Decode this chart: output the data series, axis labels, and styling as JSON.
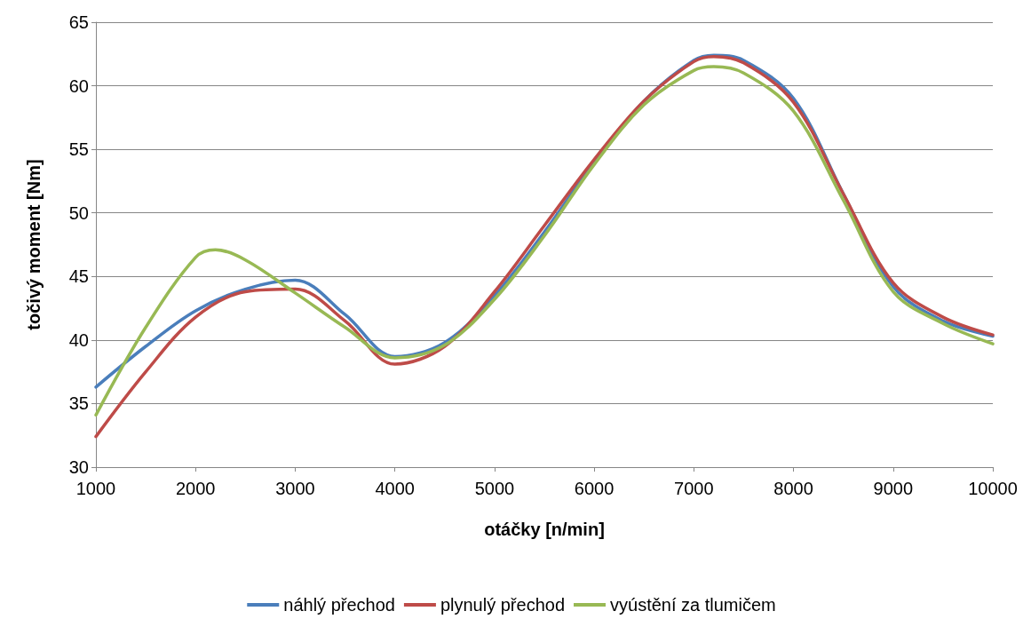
{
  "chart_data": {
    "type": "line",
    "xlabel": "otáčky [n/min]",
    "ylabel": "točivý moment [Nm]",
    "xlim": [
      1000,
      10000
    ],
    "xticks": [
      1000,
      2000,
      3000,
      4000,
      5000,
      6000,
      7000,
      8000,
      9000,
      10000
    ],
    "ylim": [
      30,
      65
    ],
    "yticks": [
      30,
      35,
      40,
      45,
      50,
      55,
      60,
      65
    ],
    "grid": "y",
    "legend": "bottom",
    "marker": "none",
    "line_style": "solid",
    "series": [
      {
        "name": "náhlý přechod",
        "color": "#4a7ebb",
        "x": [
          1000,
          1500,
          2000,
          2500,
          3000,
          3500,
          4000,
          4500,
          5000,
          5500,
          6000,
          6500,
          7000,
          7200,
          7500,
          8000,
          8500,
          9000,
          9500,
          10000
        ],
        "values": [
          36.3,
          39.5,
          42.3,
          44,
          44.7,
          42,
          38.7,
          39.8,
          43.5,
          48.5,
          54,
          58.8,
          62,
          62.4,
          62,
          59,
          51.5,
          44.2,
          41.5,
          40.3
        ]
      },
      {
        "name": "plynulý přechod",
        "color": "#be4b48",
        "x": [
          1000,
          1500,
          2000,
          2500,
          3000,
          3500,
          4000,
          4500,
          5000,
          5500,
          6000,
          6500,
          7000,
          7200,
          7500,
          8000,
          8500,
          9000,
          9500,
          10000
        ],
        "values": [
          32.4,
          37.5,
          41.8,
          43.8,
          44,
          41.5,
          38.1,
          39.5,
          43.8,
          49,
          54.2,
          58.8,
          61.9,
          62.3,
          61.8,
          58.7,
          51.5,
          44.5,
          41.8,
          40.4
        ]
      },
      {
        "name": "vyústění za tlumičem",
        "color": "#98b954",
        "x": [
          1000,
          1500,
          2000,
          2200,
          2500,
          3000,
          3500,
          4000,
          4500,
          5000,
          5500,
          6000,
          6500,
          7000,
          7200,
          7500,
          8000,
          8500,
          9000,
          9500,
          10000
        ],
        "values": [
          34.1,
          41,
          46.5,
          47.1,
          46.3,
          43.7,
          41,
          38.6,
          39.6,
          43.2,
          48.2,
          53.8,
          58.5,
          61.2,
          61.5,
          61,
          58,
          51,
          43.8,
          41.3,
          39.7
        ]
      }
    ]
  }
}
